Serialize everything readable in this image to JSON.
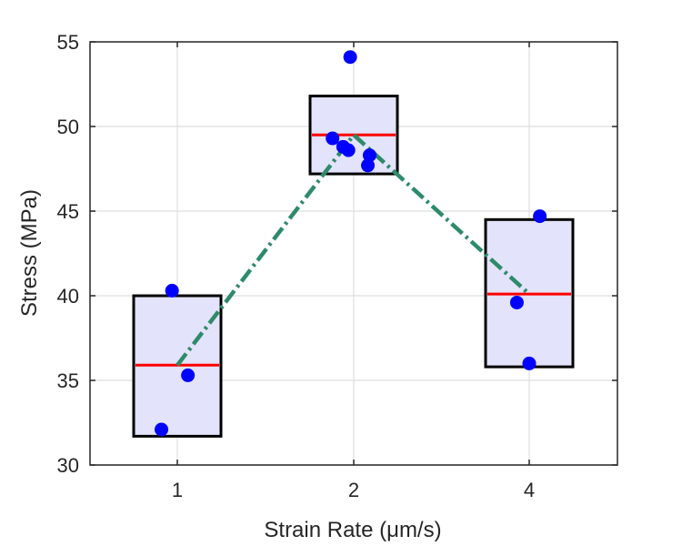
{
  "chart_data": {
    "type": "box",
    "xlabel": "Strain Rate (μm/s)",
    "ylabel": "Stress (MPa)",
    "ylim": [
      30,
      55
    ],
    "yticks": [
      30,
      35,
      40,
      45,
      50,
      55
    ],
    "categories": [
      "1",
      "2",
      "4"
    ],
    "grid": true,
    "boxes": [
      {
        "category": "1",
        "low": 31.7,
        "high": 40.0,
        "median": 35.9
      },
      {
        "category": "2",
        "low": 47.2,
        "high": 51.8,
        "median": 49.5
      },
      {
        "category": "4",
        "low": 35.8,
        "high": 44.5,
        "median": 40.1
      }
    ],
    "points": [
      {
        "category": "1",
        "offset": -0.09,
        "y": 32.1
      },
      {
        "category": "1",
        "offset": -0.03,
        "y": 40.3
      },
      {
        "category": "1",
        "offset": 0.06,
        "y": 35.3
      },
      {
        "category": "2",
        "offset": -0.12,
        "y": 49.3
      },
      {
        "category": "2",
        "offset": -0.06,
        "y": 48.8
      },
      {
        "category": "2",
        "offset": -0.02,
        "y": 54.1
      },
      {
        "category": "2",
        "offset": -0.03,
        "y": 48.6
      },
      {
        "category": "2",
        "offset": 0.09,
        "y": 48.3
      },
      {
        "category": "2",
        "offset": 0.08,
        "y": 47.7
      },
      {
        "category": "4",
        "offset": -0.07,
        "y": 39.6
      },
      {
        "category": "4",
        "offset": 0.0,
        "y": 36.0
      },
      {
        "category": "4",
        "offset": 0.06,
        "y": 44.7
      }
    ],
    "mean_line": {
      "categories": [
        "1",
        "2",
        "4"
      ],
      "values": [
        35.9,
        49.5,
        40.1
      ]
    },
    "colors": {
      "box_fill": "#e3e3fb",
      "box_edge": "#000000",
      "median": "#ff0000",
      "points": "#0000ff",
      "trend": "#2e8b6a"
    }
  }
}
